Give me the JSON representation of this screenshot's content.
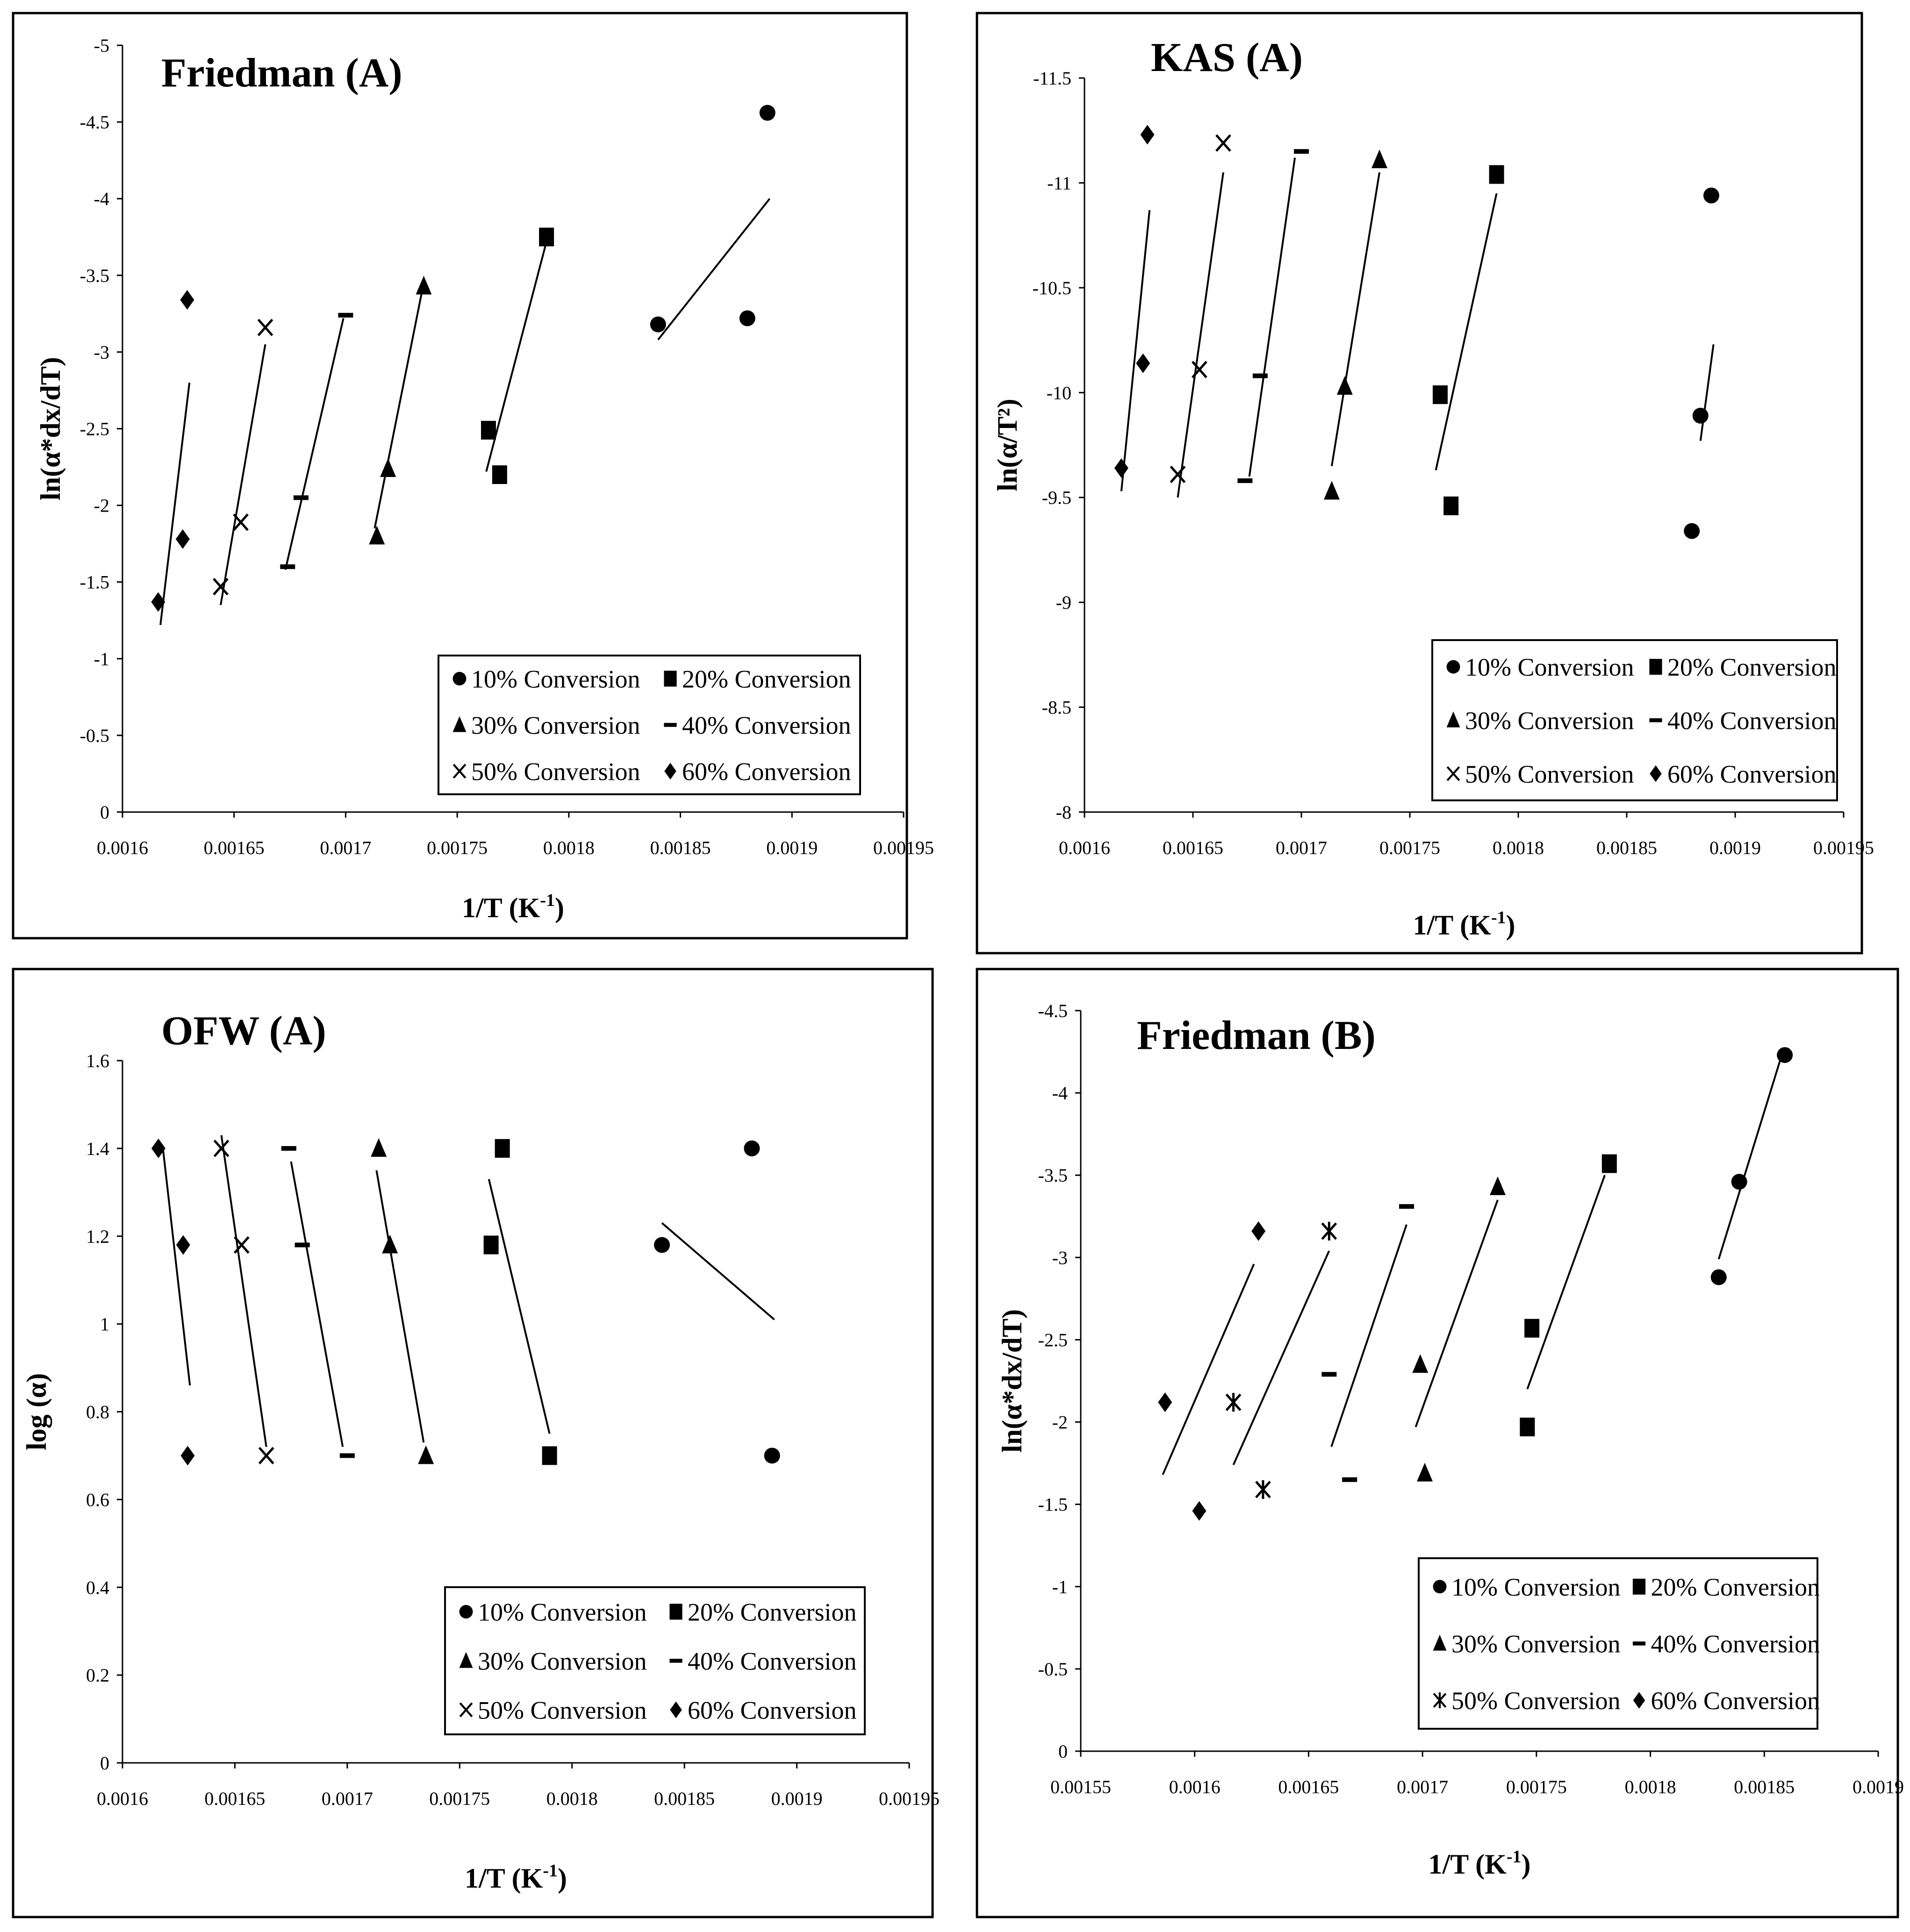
{
  "figure": {
    "caption": ""
  },
  "chart_data": [
    {
      "type": "scatter",
      "title": "Friedman (A)",
      "xlabel": "1/T (K",
      "xlabel_sup": "-1",
      "xlabel_end": ")",
      "ylabel": "ln(α*dx/dT)",
      "xlim": [
        0.0016,
        0.00195
      ],
      "ylim": [
        0,
        -5
      ],
      "xticks": [
        "0.0016",
        "0.00165",
        "0.0017",
        "0.00175",
        "0.0018",
        "0.00185",
        "0.0019",
        "0.00195"
      ],
      "yticks": [
        "0",
        "-0.5",
        "-1",
        "-1.5",
        "-2",
        "-2.5",
        "-3",
        "-3.5",
        "-4",
        "-4.5",
        "-5"
      ],
      "legend": [
        "10% Conversion",
        "20% Conversion",
        "30% Conversion",
        "40% Conversion",
        "50% Conversion",
        "60% Conversion"
      ],
      "series": [
        {
          "name": "10% Conversion",
          "marker": "circle",
          "x": [
            0.00184,
            0.00188,
            0.001889
          ],
          "y": [
            -3.18,
            -3.22,
            -4.56
          ],
          "fit": [
            [
              0.00184,
              -3.08
            ],
            [
              0.00189,
              -4.0
            ]
          ]
        },
        {
          "name": "20% Conversion",
          "marker": "square",
          "x": [
            0.001764,
            0.001769,
            0.00179
          ],
          "y": [
            -2.49,
            -2.2,
            -3.75
          ],
          "fit": [
            [
              0.001763,
              -2.22
            ],
            [
              0.00179,
              -3.72
            ]
          ]
        },
        {
          "name": "30% Conversion",
          "marker": "triangle",
          "x": [
            0.001714,
            0.001719,
            0.001735
          ],
          "y": [
            -1.8,
            -2.24,
            -3.43
          ],
          "fit": [
            [
              0.001713,
              -1.85
            ],
            [
              0.001734,
              -3.38
            ]
          ]
        },
        {
          "name": "40% Conversion",
          "marker": "dash",
          "x": [
            0.001674,
            0.00168,
            0.0017
          ],
          "y": [
            -1.6,
            -2.05,
            -3.24
          ],
          "fit": [
            [
              0.001673,
              -1.58
            ],
            [
              0.001699,
              -3.22
            ]
          ]
        },
        {
          "name": "50% Conversion",
          "marker": "x",
          "x": [
            0.001644,
            0.001653,
            0.001664
          ],
          "y": [
            -1.47,
            -1.89,
            -3.16
          ],
          "fit": [
            [
              0.001644,
              -1.35
            ],
            [
              0.001664,
              -3.05
            ]
          ]
        },
        {
          "name": "60% Conversion",
          "marker": "diamond",
          "x": [
            0.001616,
            0.001627,
            0.001629
          ],
          "y": [
            -1.37,
            -1.78,
            -3.34
          ],
          "fit": [
            [
              0.001617,
              -1.22
            ],
            [
              0.00163,
              -2.8
            ]
          ]
        }
      ]
    },
    {
      "type": "scatter",
      "title": "KAS (A)",
      "xlabel": "1/T (K",
      "xlabel_sup": "-1",
      "xlabel_end": ")",
      "ylabel": "ln(α/T²)",
      "xlim": [
        0.0016,
        0.00195
      ],
      "ylim": [
        -8,
        -11.5
      ],
      "xticks": [
        "0.0016",
        "0.00165",
        "0.0017",
        "0.00175",
        "0.0018",
        "0.00185",
        "0.0019",
        "0.00195"
      ],
      "yticks": [
        "-8",
        "-8.5",
        "-9",
        "-9.5",
        "-10",
        "-10.5",
        "-11",
        "-11.5"
      ],
      "legend": [
        "10% Conversion",
        "20% Conversion",
        "30% Conversion",
        "40% Conversion",
        "50% Conversion",
        "60% Conversion"
      ],
      "series": [
        {
          "name": "10% Conversion",
          "marker": "circle",
          "x": [
            0.001884,
            0.00188,
            0.001889
          ],
          "y": [
            -9.89,
            -9.34,
            -10.94
          ],
          "fit": [
            [
              0.001884,
              -9.77
            ],
            [
              0.00189,
              -10.23
            ]
          ]
        },
        {
          "name": "20% Conversion",
          "marker": "square",
          "x": [
            0.001764,
            0.001769,
            0.00179
          ],
          "y": [
            -9.99,
            -9.46,
            -11.04
          ],
          "fit": [
            [
              0.001762,
              -9.63
            ],
            [
              0.00179,
              -10.95
            ]
          ]
        },
        {
          "name": "30% Conversion",
          "marker": "triangle",
          "x": [
            0.001714,
            0.00172,
            0.001736
          ],
          "y": [
            -9.53,
            -10.03,
            -11.11
          ],
          "fit": [
            [
              0.001714,
              -9.65
            ],
            [
              0.001736,
              -11.05
            ]
          ]
        },
        {
          "name": "40% Conversion",
          "marker": "dash",
          "x": [
            0.001674,
            0.001681,
            0.0017
          ],
          "y": [
            -9.58,
            -10.08,
            -11.15
          ],
          "fit": [
            [
              0.001676,
              -9.6
            ],
            [
              0.001697,
              -11.12
            ]
          ]
        },
        {
          "name": "50% Conversion",
          "marker": "x",
          "x": [
            0.001643,
            0.001653,
            0.001664
          ],
          "y": [
            -9.61,
            -10.11,
            -11.19
          ],
          "fit": [
            [
              0.001643,
              -9.5
            ],
            [
              0.001664,
              -11.05
            ]
          ]
        },
        {
          "name": "60% Conversion",
          "marker": "diamond",
          "x": [
            0.001617,
            0.001627,
            0.001629
          ],
          "y": [
            -9.64,
            -10.14,
            -11.23
          ],
          "fit": [
            [
              0.001617,
              -9.53
            ],
            [
              0.00163,
              -10.87
            ]
          ]
        }
      ]
    },
    {
      "type": "scatter",
      "title": "OFW (A)",
      "xlabel": "1/T (K",
      "xlabel_sup": "-1",
      "xlabel_end": ")",
      "ylabel": "log (α)",
      "xlim": [
        0.0016,
        0.00195
      ],
      "ylim": [
        0,
        1.6
      ],
      "xticks": [
        "0.0016",
        "0.00165",
        "0.0017",
        "0.00175",
        "0.0018",
        "0.00185",
        "0.0019",
        "0.00195"
      ],
      "yticks": [
        "0",
        "0.2",
        "0.4",
        "0.6",
        "0.8",
        "1",
        "1.2",
        "1.4",
        "1.6"
      ],
      "legend": [
        "10% Conversion",
        "20% Conversion",
        "30% Conversion",
        "40% Conversion",
        "50% Conversion",
        "60% Conversion"
      ],
      "series": [
        {
          "name": "10% Conversion",
          "marker": "circle",
          "x": [
            0.00184,
            0.00188,
            0.001889
          ],
          "y": [
            1.18,
            1.4,
            0.7
          ],
          "fit": [
            [
              0.00184,
              1.23
            ],
            [
              0.00189,
              1.01
            ]
          ]
        },
        {
          "name": "20% Conversion",
          "marker": "square",
          "x": [
            0.001764,
            0.001769,
            0.00179
          ],
          "y": [
            1.18,
            1.4,
            0.7
          ],
          "fit": [
            [
              0.001763,
              1.33
            ],
            [
              0.00179,
              0.75
            ]
          ]
        },
        {
          "name": "30% Conversion",
          "marker": "triangle",
          "x": [
            0.001714,
            0.001719,
            0.001735
          ],
          "y": [
            1.4,
            1.18,
            0.7
          ],
          "fit": [
            [
              0.001713,
              1.35
            ],
            [
              0.001734,
              0.73
            ]
          ]
        },
        {
          "name": "40% Conversion",
          "marker": "dash",
          "x": [
            0.001674,
            0.00168,
            0.0017
          ],
          "y": [
            1.4,
            1.18,
            0.7
          ],
          "fit": [
            [
              0.001675,
              1.37
            ],
            [
              0.001698,
              0.72
            ]
          ]
        },
        {
          "name": "50% Conversion",
          "marker": "x",
          "x": [
            0.001644,
            0.001653,
            0.001664
          ],
          "y": [
            1.4,
            1.18,
            0.7
          ],
          "fit": [
            [
              0.001644,
              1.43
            ],
            [
              0.001664,
              0.72
            ]
          ]
        },
        {
          "name": "60% Conversion",
          "marker": "diamond",
          "x": [
            0.001616,
            0.001627,
            0.001629
          ],
          "y": [
            1.4,
            1.18,
            0.7
          ],
          "fit": [
            [
              0.001618,
              1.4
            ],
            [
              0.00163,
              0.86
            ]
          ]
        }
      ]
    },
    {
      "type": "scatter",
      "title": "Friedman (B)",
      "xlabel": "1/T (K",
      "xlabel_sup": "-1",
      "xlabel_end": ")",
      "ylabel": "ln(α*dx/dT)",
      "xlim": [
        0.00155,
        0.0019
      ],
      "ylim": [
        0,
        -4.5
      ],
      "xticks": [
        "0.00155",
        "0.0016",
        "0.00165",
        "0.0017",
        "0.00175",
        "0.0018",
        "0.00185",
        "0.0019"
      ],
      "yticks": [
        "0",
        "-0.5",
        "-1",
        "-1.5",
        "-2",
        "-2.5",
        "-3",
        "-3.5",
        "-4",
        "-4.5"
      ],
      "legend": [
        "10% Conversion",
        "20% Conversion",
        "30% Conversion",
        "40% Conversion",
        "50% Conversion",
        "60% Conversion"
      ],
      "series": [
        {
          "name": "10% Conversion",
          "marker": "circle",
          "x": [
            0.00183,
            0.001839,
            0.001859
          ],
          "y": [
            -2.88,
            -3.46,
            -4.23
          ],
          "fit": [
            [
              0.00183,
              -2.99
            ],
            [
              0.001857,
              -4.2
            ]
          ]
        },
        {
          "name": "20% Conversion",
          "marker": "square",
          "x": [
            0.001746,
            0.001748,
            0.001782
          ],
          "y": [
            -1.97,
            -2.57,
            -3.57
          ],
          "fit": [
            [
              0.001746,
              -2.2
            ],
            [
              0.00178,
              -3.5
            ]
          ]
        },
        {
          "name": "30% Conversion",
          "marker": "triangle",
          "x": [
            0.001701,
            0.001699,
            0.001733
          ],
          "y": [
            -1.69,
            -2.35,
            -3.43
          ],
          "fit": [
            [
              0.001697,
              -1.97
            ],
            [
              0.001733,
              -3.35
            ]
          ]
        },
        {
          "name": "40% Conversion",
          "marker": "dash",
          "x": [
            0.001668,
            0.001659,
            0.001693
          ],
          "y": [
            -1.65,
            -2.29,
            -3.31
          ],
          "fit": [
            [
              0.00166,
              -1.85
            ],
            [
              0.001693,
              -3.2
            ]
          ]
        },
        {
          "name": "50% Conversion",
          "marker": "asterisk",
          "x": [
            0.00163,
            0.001617,
            0.001659
          ],
          "y": [
            -1.59,
            -2.12,
            -3.16
          ],
          "fit": [
            [
              0.001617,
              -1.74
            ],
            [
              0.001659,
              -3.04
            ]
          ]
        },
        {
          "name": "60% Conversion",
          "marker": "diamond",
          "x": [
            0.001602,
            0.001587,
            0.001628
          ],
          "y": [
            -1.46,
            -2.12,
            -3.16
          ],
          "fit": [
            [
              0.001586,
              -1.68
            ],
            [
              0.001626,
              -2.96
            ]
          ]
        }
      ]
    }
  ]
}
